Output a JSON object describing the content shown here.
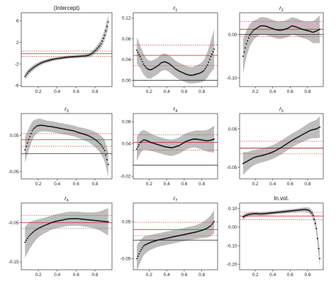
{
  "chart_data": [
    {
      "type": "line",
      "title": "(Intercept)",
      "x": [
        0.06,
        0.1,
        0.14,
        0.18,
        0.22,
        0.26,
        0.3,
        0.34,
        0.38,
        0.42,
        0.46,
        0.5,
        0.54,
        0.58,
        0.62,
        0.66,
        0.7,
        0.74,
        0.78,
        0.82,
        0.86,
        0.9,
        0.94
      ],
      "estimate": [
        -4.3,
        -3.4,
        -2.8,
        -2.3,
        -1.9,
        -1.6,
        -1.4,
        -1.2,
        -1.05,
        -0.95,
        -0.85,
        -0.75,
        -0.7,
        -0.65,
        -0.6,
        -0.55,
        -0.5,
        -0.35,
        0.1,
        0.8,
        1.6,
        3.2,
        5.8
      ],
      "band_width": [
        0.6,
        0.55,
        0.5,
        0.45,
        0.4,
        0.35,
        0.35,
        0.35,
        0.3,
        0.3,
        0.3,
        0.3,
        0.3,
        0.3,
        0.3,
        0.3,
        0.35,
        0.4,
        0.5,
        0.6,
        0.8,
        1.0,
        1.3
      ],
      "ols": -0.1,
      "ols_band": [
        -0.6,
        0.4
      ],
      "zero_line": false,
      "xlim": [
        0.02,
        0.98
      ],
      "ylim": [
        -6.2,
        7.5
      ],
      "xticks": [
        "0.2",
        "0.4",
        "0.6",
        "0.8"
      ],
      "yticks": [
        "-6",
        "-2",
        "2",
        "6"
      ],
      "ytick_values": [
        -6,
        -2,
        2,
        6
      ]
    },
    {
      "type": "line",
      "title": "r",
      "subscript": "1",
      "x": [
        0.06,
        0.1,
        0.14,
        0.18,
        0.22,
        0.26,
        0.3,
        0.34,
        0.38,
        0.42,
        0.46,
        0.5,
        0.54,
        0.58,
        0.62,
        0.66,
        0.7,
        0.74,
        0.78,
        0.82,
        0.86,
        0.9,
        0.94
      ],
      "estimate": [
        0.058,
        0.045,
        0.03,
        0.022,
        0.02,
        0.024,
        0.028,
        0.034,
        0.036,
        0.033,
        0.028,
        0.022,
        0.018,
        0.015,
        0.012,
        0.01,
        0.01,
        0.012,
        0.014,
        0.018,
        0.028,
        0.045,
        0.06
      ],
      "band_width": [
        0.025,
        0.022,
        0.02,
        0.018,
        0.017,
        0.016,
        0.016,
        0.016,
        0.016,
        0.016,
        0.016,
        0.016,
        0.016,
        0.016,
        0.016,
        0.016,
        0.016,
        0.017,
        0.018,
        0.02,
        0.024,
        0.03,
        0.038
      ],
      "ols": 0.048,
      "ols_band": [
        0.028,
        0.068
      ],
      "zero_line": true,
      "xlim": [
        0.02,
        0.98
      ],
      "ylim": [
        -0.012,
        0.13
      ],
      "xticks": [
        "0.2",
        "0.4",
        "0.6",
        "0.8"
      ],
      "yticks": [
        "0.00",
        "0.04",
        "0.08",
        "0.12"
      ],
      "ytick_values": [
        0,
        0.04,
        0.08,
        0.12
      ]
    },
    {
      "type": "line",
      "title": "r",
      "subscript": "2",
      "x": [
        0.06,
        0.1,
        0.14,
        0.18,
        0.22,
        0.26,
        0.3,
        0.34,
        0.38,
        0.42,
        0.46,
        0.5,
        0.54,
        0.58,
        0.62,
        0.66,
        0.7,
        0.74,
        0.78,
        0.82,
        0.86,
        0.9,
        0.94
      ],
      "estimate": [
        -0.05,
        -0.02,
        0.0,
        0.01,
        0.015,
        0.02,
        0.02,
        0.018,
        0.015,
        0.012,
        0.01,
        0.01,
        0.012,
        0.015,
        0.02,
        0.018,
        0.015,
        0.012,
        0.01,
        0.008,
        0.005,
        0.008,
        0.012
      ],
      "band_width": [
        0.04,
        0.03,
        0.025,
        0.022,
        0.02,
        0.02,
        0.02,
        0.02,
        0.02,
        0.02,
        0.02,
        0.02,
        0.02,
        0.02,
        0.02,
        0.02,
        0.02,
        0.02,
        0.02,
        0.022,
        0.025,
        0.028,
        0.032
      ],
      "ols": 0.012,
      "ols_band": [
        -0.005,
        0.03
      ],
      "zero_line": true,
      "xlim": [
        0.02,
        0.98
      ],
      "ylim": [
        -0.12,
        0.05
      ],
      "xticks": [
        "0.2",
        "0.4",
        "0.6",
        "0.8"
      ],
      "yticks": [
        "-0.10",
        "0.00"
      ],
      "ytick_values": [
        -0.1,
        0.0
      ]
    },
    {
      "type": "line",
      "title": "r",
      "subscript": "3",
      "x": [
        0.06,
        0.1,
        0.14,
        0.18,
        0.22,
        0.26,
        0.3,
        0.34,
        0.38,
        0.42,
        0.46,
        0.5,
        0.54,
        0.58,
        0.62,
        0.66,
        0.7,
        0.74,
        0.78,
        0.82,
        0.86,
        0.9,
        0.94
      ],
      "estimate": [
        0.01,
        0.04,
        0.065,
        0.075,
        0.078,
        0.077,
        0.075,
        0.074,
        0.072,
        0.07,
        0.068,
        0.066,
        0.064,
        0.062,
        0.058,
        0.055,
        0.052,
        0.048,
        0.042,
        0.035,
        0.025,
        0.01,
        -0.03
      ],
      "band_width": [
        0.035,
        0.03,
        0.025,
        0.02,
        0.018,
        0.016,
        0.015,
        0.015,
        0.015,
        0.015,
        0.015,
        0.015,
        0.015,
        0.015,
        0.015,
        0.016,
        0.017,
        0.018,
        0.02,
        0.022,
        0.025,
        0.03,
        0.035
      ],
      "ols": 0.038,
      "ols_band": [
        0.02,
        0.055
      ],
      "zero_line": true,
      "xlim": [
        0.02,
        0.98
      ],
      "ylim": [
        -0.07,
        0.11
      ],
      "xticks": [
        "0.2",
        "0.4",
        "0.6",
        "0.8"
      ],
      "yticks": [
        "-0.05",
        "0.05"
      ],
      "ytick_values": [
        -0.05,
        0.05
      ]
    },
    {
      "type": "line",
      "title": "r",
      "subscript": "4",
      "x": [
        0.06,
        0.1,
        0.14,
        0.18,
        0.22,
        0.26,
        0.3,
        0.34,
        0.38,
        0.42,
        0.46,
        0.5,
        0.54,
        0.58,
        0.62,
        0.66,
        0.7,
        0.74,
        0.78,
        0.82,
        0.86,
        0.9,
        0.94
      ],
      "estimate": [
        0.03,
        0.042,
        0.047,
        0.045,
        0.042,
        0.04,
        0.038,
        0.036,
        0.034,
        0.033,
        0.032,
        0.034,
        0.036,
        0.04,
        0.044,
        0.046,
        0.048,
        0.048,
        0.047,
        0.046,
        0.045,
        0.046,
        0.048
      ],
      "band_width": [
        0.022,
        0.02,
        0.018,
        0.017,
        0.016,
        0.015,
        0.015,
        0.015,
        0.015,
        0.015,
        0.015,
        0.015,
        0.015,
        0.015,
        0.015,
        0.015,
        0.015,
        0.016,
        0.017,
        0.018,
        0.02,
        0.022,
        0.025
      ],
      "ols": 0.042,
      "ols_band": [
        0.028,
        0.056
      ],
      "zero_line": true,
      "xlim": [
        0.02,
        0.98
      ],
      "ylim": [
        -0.025,
        0.095
      ],
      "xticks": [
        "0.2",
        "0.4",
        "0.6",
        "0.8"
      ],
      "yticks": [
        "-0.02",
        "0.04",
        "0.08"
      ],
      "ytick_values": [
        -0.02,
        0.04,
        0.08
      ]
    },
    {
      "type": "line",
      "title": "r",
      "subscript": "5",
      "x": [
        0.06,
        0.1,
        0.14,
        0.18,
        0.22,
        0.26,
        0.3,
        0.34,
        0.38,
        0.42,
        0.46,
        0.5,
        0.54,
        0.58,
        0.62,
        0.66,
        0.7,
        0.74,
        0.78,
        0.82,
        0.86,
        0.9,
        0.94
      ],
      "estimate": [
        -0.04,
        -0.035,
        -0.03,
        -0.025,
        -0.022,
        -0.02,
        -0.018,
        -0.015,
        -0.012,
        -0.008,
        -0.003,
        0.002,
        0.008,
        0.014,
        0.02,
        0.025,
        0.03,
        0.035,
        0.04,
        0.045,
        0.048,
        0.05,
        0.055
      ],
      "band_width": [
        0.03,
        0.025,
        0.022,
        0.02,
        0.019,
        0.018,
        0.018,
        0.018,
        0.018,
        0.018,
        0.018,
        0.018,
        0.018,
        0.018,
        0.018,
        0.018,
        0.018,
        0.019,
        0.02,
        0.021,
        0.022,
        0.024,
        0.028
      ],
      "ols": 0.0,
      "ols_band": [
        -0.015,
        0.018
      ],
      "zero_line": true,
      "xlim": [
        0.02,
        0.98
      ],
      "ylim": [
        -0.08,
        0.09
      ],
      "xticks": [
        "0.2",
        "0.4",
        "0.6",
        "0.8"
      ],
      "yticks": [
        "-0.05",
        "0.05"
      ],
      "ytick_values": [
        -0.05,
        0.05
      ]
    },
    {
      "type": "line",
      "title": "r",
      "subscript": "6",
      "x": [
        0.06,
        0.1,
        0.14,
        0.18,
        0.22,
        0.26,
        0.3,
        0.34,
        0.38,
        0.42,
        0.46,
        0.5,
        0.54,
        0.58,
        0.62,
        0.66,
        0.7,
        0.74,
        0.78,
        0.82,
        0.86,
        0.9,
        0.94
      ],
      "estimate": [
        -0.1,
        -0.085,
        -0.075,
        -0.068,
        -0.062,
        -0.058,
        -0.054,
        -0.05,
        -0.047,
        -0.045,
        -0.043,
        -0.041,
        -0.04,
        -0.04,
        -0.04,
        -0.041,
        -0.042,
        -0.043,
        -0.044,
        -0.045,
        -0.046,
        -0.047,
        -0.048
      ],
      "band_width": [
        0.04,
        0.035,
        0.03,
        0.025,
        0.022,
        0.02,
        0.019,
        0.018,
        0.018,
        0.018,
        0.018,
        0.018,
        0.018,
        0.018,
        0.018,
        0.018,
        0.018,
        0.019,
        0.02,
        0.022,
        0.025,
        0.03,
        0.035
      ],
      "ols": -0.05,
      "ols_band": [
        -0.065,
        -0.032
      ],
      "zero_line": true,
      "xlim": [
        0.02,
        0.98
      ],
      "ylim": [
        -0.17,
        0.0
      ],
      "xticks": [
        "0.2",
        "0.4",
        "0.6",
        "0.8"
      ],
      "yticks": [
        "-0.15",
        "-0.05"
      ],
      "ytick_values": [
        -0.15,
        -0.05
      ]
    },
    {
      "type": "line",
      "title": "r",
      "subscript": "7",
      "x": [
        0.06,
        0.1,
        0.14,
        0.18,
        0.22,
        0.26,
        0.3,
        0.34,
        0.38,
        0.42,
        0.46,
        0.5,
        0.54,
        0.58,
        0.62,
        0.66,
        0.7,
        0.74,
        0.78,
        0.82,
        0.86,
        0.9,
        0.94
      ],
      "estimate": [
        -0.05,
        -0.03,
        -0.015,
        -0.01,
        -0.006,
        -0.003,
        0.0,
        0.002,
        0.004,
        0.006,
        0.008,
        0.01,
        0.012,
        0.014,
        0.016,
        0.018,
        0.02,
        0.022,
        0.025,
        0.028,
        0.032,
        0.038,
        0.05
      ],
      "band_width": [
        0.035,
        0.03,
        0.025,
        0.022,
        0.02,
        0.019,
        0.018,
        0.018,
        0.018,
        0.018,
        0.018,
        0.018,
        0.018,
        0.018,
        0.018,
        0.018,
        0.018,
        0.019,
        0.02,
        0.022,
        0.025,
        0.028,
        0.032
      ],
      "ols": 0.028,
      "ols_band": [
        0.012,
        0.048
      ],
      "zero_line": true,
      "xlim": [
        0.02,
        0.98
      ],
      "ylim": [
        -0.08,
        0.1
      ],
      "xticks": [
        "0.2",
        "0.4",
        "0.6",
        "0.8"
      ],
      "yticks": [
        "-0.05",
        "0.05"
      ],
      "ytick_values": [
        -0.05,
        0.05
      ]
    },
    {
      "type": "line",
      "title": "ln.vol.",
      "x": [
        0.06,
        0.1,
        0.14,
        0.18,
        0.22,
        0.26,
        0.3,
        0.34,
        0.38,
        0.42,
        0.46,
        0.5,
        0.54,
        0.58,
        0.62,
        0.66,
        0.7,
        0.74,
        0.78,
        0.82,
        0.86,
        0.9,
        0.94
      ],
      "estimate": [
        0.055,
        0.065,
        0.07,
        0.072,
        0.072,
        0.071,
        0.072,
        0.074,
        0.076,
        0.078,
        0.08,
        0.082,
        0.084,
        0.086,
        0.088,
        0.09,
        0.092,
        0.094,
        0.095,
        0.09,
        0.07,
        0.0,
        -0.17
      ],
      "band_width": [
        0.015,
        0.012,
        0.01,
        0.01,
        0.01,
        0.01,
        0.01,
        0.01,
        0.01,
        0.01,
        0.01,
        0.01,
        0.01,
        0.01,
        0.01,
        0.01,
        0.01,
        0.011,
        0.012,
        0.015,
        0.02,
        0.03,
        0.045
      ],
      "ols": 0.06,
      "ols_band": [
        0.04,
        0.08
      ],
      "zero_line": false,
      "xlim": [
        0.02,
        0.98
      ],
      "ylim": [
        -0.23,
        0.13
      ],
      "xticks": [
        "0.2",
        "0.4",
        "0.6",
        "0.8"
      ],
      "yticks": [
        "-0.20",
        "-0.10",
        "0.00",
        "0.10"
      ],
      "ytick_values": [
        -0.2,
        -0.1,
        0.0,
        0.1
      ]
    }
  ],
  "colors": {
    "band": "#bdbdbd",
    "points": "#111111",
    "ols_line": "#d04040",
    "zero_line": "#222222",
    "axis": "#333333"
  }
}
